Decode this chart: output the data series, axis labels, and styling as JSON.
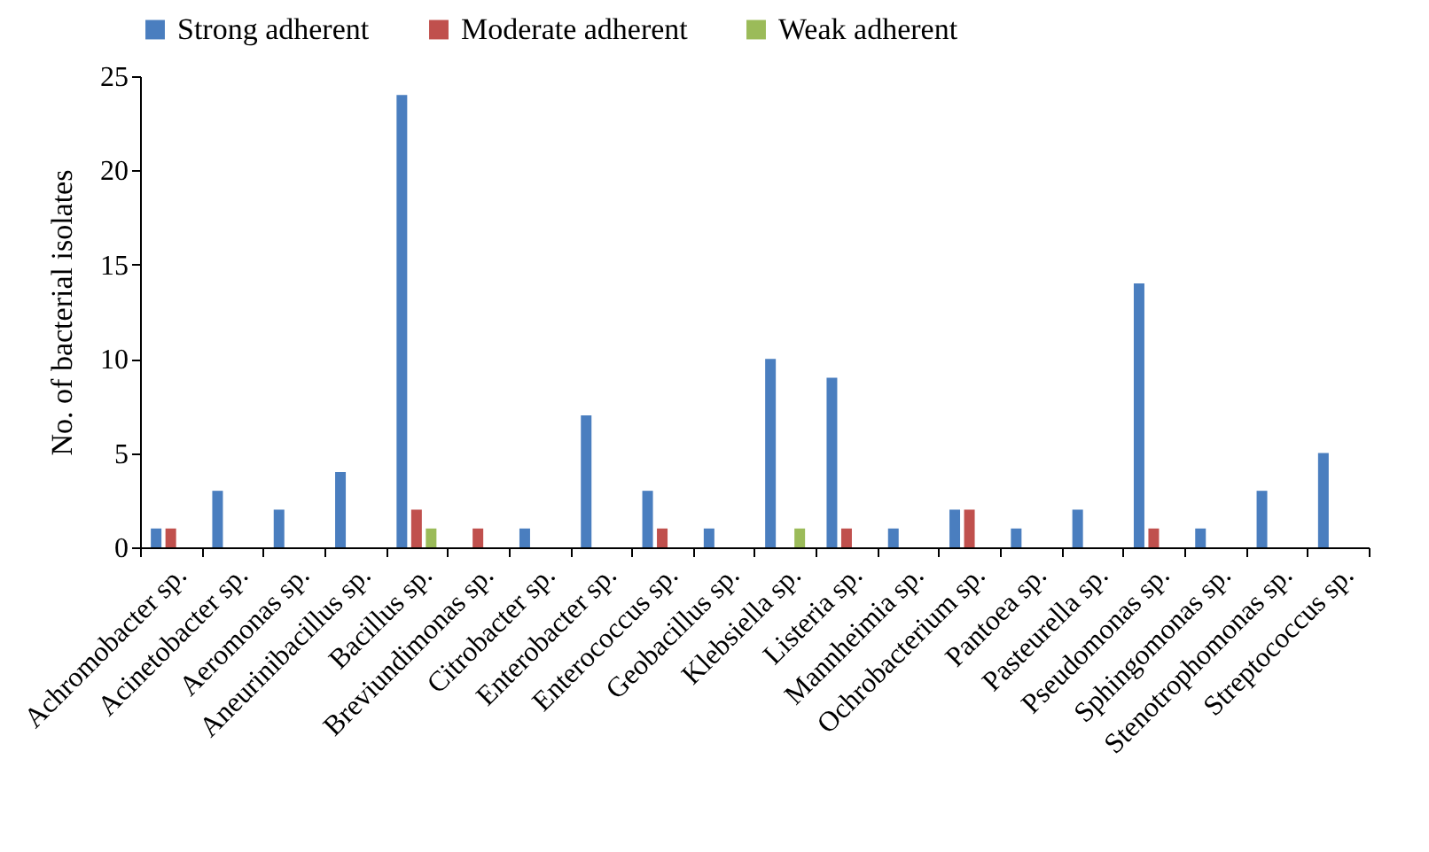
{
  "chart_data": {
    "type": "bar",
    "ylabel": "No. of bacterial isolates",
    "categories": [
      "Achromobacter sp.",
      "Acinetobacter sp.",
      "Aeromonas sp.",
      "Aneurinibacillus sp.",
      "Bacillus sp.",
      "Breviundimonas sp.",
      "Citrobacter sp.",
      "Enterobacter sp.",
      "Enterococcus sp.",
      "Geobacillus sp.",
      "Klebsiella sp.",
      "Listeria sp.",
      "Mannheimia sp.",
      "Ochrobacterium sp.",
      "Pantoea sp.",
      "Pasteurella sp.",
      "Pseudomonas sp.",
      "Sphingomonas sp.",
      "Stenotrophomonas sp.",
      "Streptococcus sp."
    ],
    "series": [
      {
        "name": "Strong adherent",
        "color": "#4a7ebf",
        "values": [
          1,
          3,
          2,
          4,
          24,
          0,
          1,
          7,
          3,
          1,
          10,
          9,
          1,
          2,
          1,
          2,
          14,
          1,
          3,
          5
        ]
      },
      {
        "name": "Moderate adherent",
        "color": "#c0504d",
        "values": [
          1,
          0,
          0,
          0,
          2,
          1,
          0,
          0,
          1,
          0,
          0,
          1,
          0,
          2,
          0,
          0,
          1,
          0,
          0,
          0
        ]
      },
      {
        "name": "Weak adherent",
        "color": "#9bbb59",
        "values": [
          0,
          0,
          0,
          0,
          1,
          0,
          0,
          0,
          0,
          0,
          1,
          0,
          0,
          0,
          0,
          0,
          0,
          0,
          0,
          0
        ]
      }
    ],
    "ylim": [
      0,
      25
    ],
    "yticks": [
      0,
      5,
      10,
      15,
      20,
      25
    ],
    "grid": false,
    "legend": "top"
  }
}
